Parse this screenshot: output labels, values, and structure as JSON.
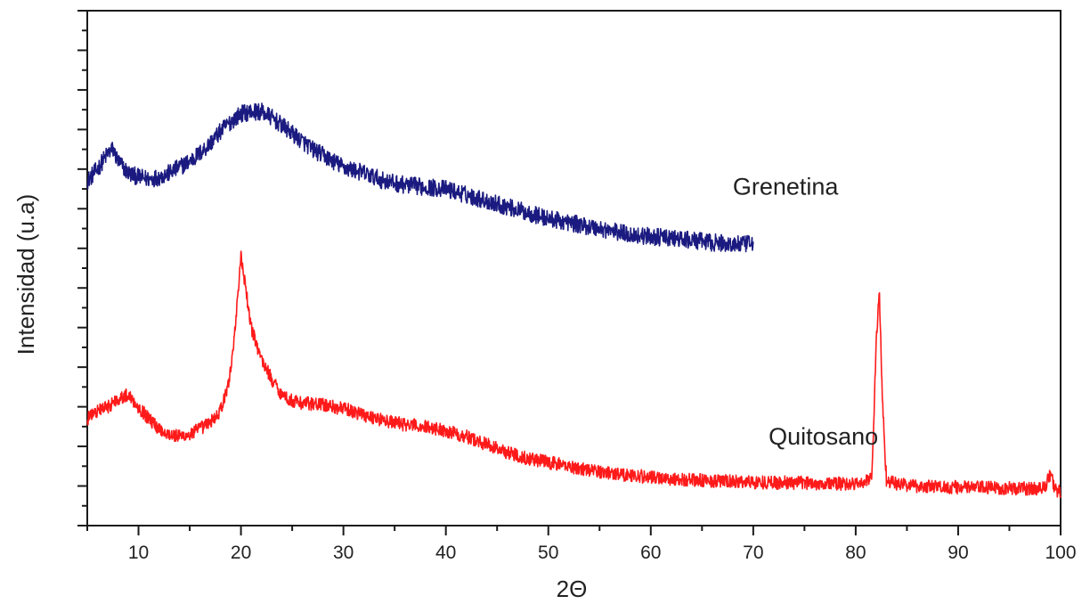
{
  "chart_data": {
    "type": "line",
    "title": "",
    "xlabel": "2Θ",
    "ylabel": "Intensidad (u.a)",
    "xlim": [
      5,
      100
    ],
    "ylim": [
      0,
      13
    ],
    "x_ticks": [
      10,
      20,
      30,
      40,
      50,
      60,
      70,
      80,
      90,
      100
    ],
    "x_tick_labels": [
      "10",
      "20",
      "30",
      "40",
      "50",
      "60",
      "70",
      "80",
      "90",
      "100"
    ],
    "y_ticks_labeled": false,
    "grid": false,
    "legend": "none",
    "series": [
      {
        "name": "Grenetina",
        "color": "#1a1a80",
        "label_at": [
          68,
          8.35
        ],
        "x": [
          5,
          6,
          7,
          7.5,
          8,
          9,
          10,
          11,
          12,
          13,
          14,
          15,
          16,
          17,
          18,
          19,
          20,
          21,
          22,
          23,
          24,
          25,
          26,
          27,
          28,
          29,
          30,
          32,
          34,
          36,
          38,
          40,
          42,
          44,
          46,
          48,
          50,
          52,
          54,
          56,
          58,
          60,
          62,
          64,
          66,
          68,
          70
        ],
        "y": [
          8.7,
          9.0,
          9.4,
          9.5,
          9.2,
          8.9,
          8.8,
          8.75,
          8.8,
          8.9,
          9.05,
          9.2,
          9.4,
          9.65,
          9.95,
          10.2,
          10.4,
          10.45,
          10.45,
          10.3,
          10.1,
          9.9,
          9.7,
          9.5,
          9.35,
          9.2,
          9.05,
          8.9,
          8.7,
          8.6,
          8.55,
          8.5,
          8.35,
          8.2,
          8.05,
          7.9,
          7.75,
          7.65,
          7.55,
          7.45,
          7.35,
          7.3,
          7.25,
          7.2,
          7.15,
          7.1,
          7.1
        ]
      },
      {
        "name": "Quitosano",
        "color": "#ff1a1a",
        "label_at": [
          71.5,
          2.05
        ],
        "x": [
          5,
          6,
          7,
          8,
          9,
          10,
          11,
          12,
          13,
          14,
          15,
          16,
          17,
          18,
          18.5,
          19,
          19.5,
          20,
          20.5,
          21,
          21.5,
          22,
          23,
          24,
          25,
          26,
          28,
          30,
          32,
          34,
          36,
          38,
          40,
          42,
          44,
          46,
          48,
          50,
          52,
          54,
          56,
          58,
          60,
          62,
          64,
          66,
          68,
          70,
          72,
          74,
          76,
          78,
          80,
          81,
          81.6,
          82,
          82.3,
          82.6,
          83,
          84,
          86,
          88,
          90,
          92,
          94,
          96,
          98,
          98.5,
          99,
          99.5,
          100
        ],
        "y": [
          2.7,
          2.9,
          3.0,
          3.2,
          3.3,
          3.0,
          2.7,
          2.45,
          2.3,
          2.25,
          2.3,
          2.45,
          2.6,
          2.9,
          3.3,
          3.9,
          5.2,
          6.8,
          5.9,
          5.0,
          4.6,
          4.2,
          3.7,
          3.3,
          3.15,
          3.1,
          3.05,
          2.95,
          2.8,
          2.65,
          2.55,
          2.5,
          2.4,
          2.25,
          2.05,
          1.85,
          1.7,
          1.6,
          1.5,
          1.4,
          1.33,
          1.27,
          1.22,
          1.18,
          1.15,
          1.13,
          1.11,
          1.1,
          1.09,
          1.08,
          1.07,
          1.06,
          1.05,
          1.1,
          1.3,
          4.6,
          6.0,
          3.2,
          1.15,
          1.05,
          1.0,
          0.98,
          0.97,
          0.96,
          0.95,
          0.94,
          0.93,
          1.0,
          1.3,
          0.9,
          0.85
        ]
      }
    ]
  }
}
